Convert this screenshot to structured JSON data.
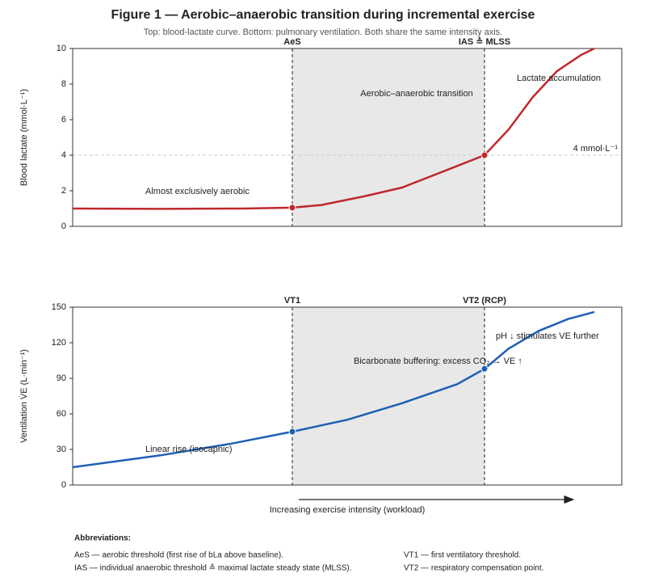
{
  "title": "Figure 1 — Aerobic–anaerobic transition during incremental exercise",
  "subtitle": "Top: blood-lactate curve. Bottom: pulmonary ventilation. Both share the same intensity axis.",
  "x_label": "Increasing exercise intensity (workload)",
  "chart_data": [
    {
      "type": "line",
      "y_label": "Blood lactate (mmol·L⁻¹)",
      "color": "#c0282d",
      "x": [
        0,
        16,
        31,
        40,
        45.3,
        53,
        60,
        69,
        75,
        79.4,
        83.8,
        88.2,
        92.6,
        95
      ],
      "values": [
        1.0,
        0.98,
        1.0,
        1.05,
        1.2,
        1.68,
        2.18,
        3.27,
        4.0,
        5.45,
        7.27,
        8.73,
        9.64,
        10
      ],
      "xlim": [
        0,
        100
      ],
      "ylim": [
        0,
        10
      ],
      "yticks": [
        0,
        2,
        4,
        6,
        8,
        10
      ],
      "thresholds": [
        {
          "x": 40,
          "label": "AeS"
        },
        {
          "x": 75,
          "label": "IAS ≙ MLSS"
        }
      ],
      "reference_line": {
        "value": 4,
        "label": "4 mmol·L⁻¹"
      },
      "annotations": [
        "Almost exclusively aerobic",
        "Aerobic–anaerobic transition",
        "Lactate accumulation"
      ]
    },
    {
      "type": "line",
      "y_label": "Ventilation V̇E (L·min⁻¹)",
      "color": "#1f5fb4",
      "x": [
        0,
        16,
        29,
        40,
        50,
        60,
        70,
        75,
        79.4,
        84.9,
        90.2,
        95
      ],
      "values": [
        15,
        25,
        35,
        45,
        55,
        69,
        85,
        98,
        115,
        130,
        140,
        146
      ],
      "xlim": [
        0,
        100
      ],
      "ylim": [
        0,
        150
      ],
      "yticks": [
        0,
        30,
        60,
        90,
        120,
        150
      ],
      "thresholds": [
        {
          "x": 40,
          "label": "VT1"
        },
        {
          "x": 75,
          "label": "VT2 (RCP)"
        }
      ],
      "annotations": [
        "Linear rise (isocapnic)",
        "Bicarbonate buffering: excess CO₂ → VE ↑",
        "pH ↓ stimulates VE further"
      ]
    }
  ],
  "abbreviations": {
    "title": "Abbreviations:",
    "items": [
      "AeS — aerobic threshold (first rise of bLa above baseline).",
      "IAS — individual anaerobic threshold ≙ maximal lactate steady state (MLSS).",
      "VT1 — first ventilatory threshold.",
      "VT2 — respiratory compensation point."
    ]
  }
}
